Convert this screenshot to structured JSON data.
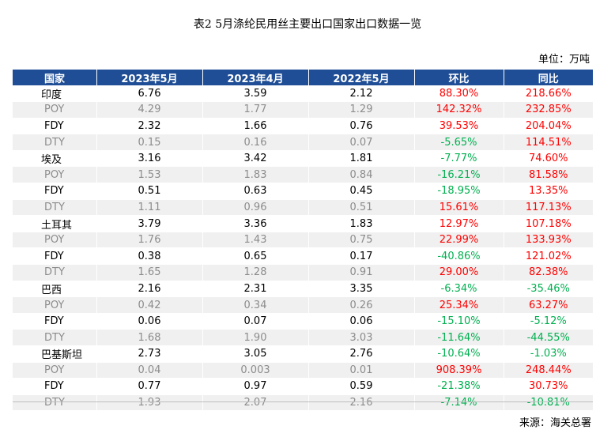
{
  "title": "表2 5月涤纶民用丝主要出口国家出口数据一览",
  "unit": "单位：万吨",
  "source": "来源：海关总署",
  "headers": [
    "国家",
    "2023年5月",
    "2023年4月",
    "2022年5月",
    "环比",
    "同比"
  ],
  "colors": {
    "header_bg": "#1f4e96",
    "up": "#ff0000",
    "down": "#00b050",
    "gray": "#8c8c8c"
  },
  "rows": [
    {
      "name": "印度",
      "may23": "6.76",
      "apr23": "3.59",
      "may22": "2.12",
      "mom": "88.30%",
      "yoy": "218.66%",
      "mom_dir": "up",
      "yoy_dir": "up",
      "kind": "country"
    },
    {
      "name": "POY",
      "may23": "4.29",
      "apr23": "1.77",
      "may22": "1.29",
      "mom": "142.32%",
      "yoy": "232.85%",
      "mom_dir": "up",
      "yoy_dir": "up",
      "kind": "gray"
    },
    {
      "name": "FDY",
      "may23": "2.32",
      "apr23": "1.66",
      "may22": "0.76",
      "mom": "39.53%",
      "yoy": "204.04%",
      "mom_dir": "up",
      "yoy_dir": "up",
      "kind": "sub"
    },
    {
      "name": "DTY",
      "may23": "0.15",
      "apr23": "0.16",
      "may22": "0.07",
      "mom": "-5.65%",
      "yoy": "114.51%",
      "mom_dir": "down",
      "yoy_dir": "up",
      "kind": "gray"
    },
    {
      "name": "埃及",
      "may23": "3.16",
      "apr23": "3.42",
      "may22": "1.81",
      "mom": "-7.77%",
      "yoy": "74.60%",
      "mom_dir": "down",
      "yoy_dir": "up",
      "kind": "country"
    },
    {
      "name": "POY",
      "may23": "1.53",
      "apr23": "1.83",
      "may22": "0.84",
      "mom": "-16.21%",
      "yoy": "81.58%",
      "mom_dir": "down",
      "yoy_dir": "up",
      "kind": "gray"
    },
    {
      "name": "FDY",
      "may23": "0.51",
      "apr23": "0.63",
      "may22": "0.45",
      "mom": "-18.95%",
      "yoy": "13.35%",
      "mom_dir": "down",
      "yoy_dir": "up",
      "kind": "sub"
    },
    {
      "name": "DTY",
      "may23": "1.11",
      "apr23": "0.96",
      "may22": "0.51",
      "mom": "15.61%",
      "yoy": "117.13%",
      "mom_dir": "up",
      "yoy_dir": "up",
      "kind": "gray"
    },
    {
      "name": "土耳其",
      "may23": "3.79",
      "apr23": "3.36",
      "may22": "1.83",
      "mom": "12.97%",
      "yoy": "107.18%",
      "mom_dir": "up",
      "yoy_dir": "up",
      "kind": "country"
    },
    {
      "name": "POY",
      "may23": "1.76",
      "apr23": "1.43",
      "may22": "0.75",
      "mom": "22.99%",
      "yoy": "133.93%",
      "mom_dir": "up",
      "yoy_dir": "up",
      "kind": "gray"
    },
    {
      "name": "FDY",
      "may23": "0.38",
      "apr23": "0.65",
      "may22": "0.17",
      "mom": "-40.86%",
      "yoy": "121.02%",
      "mom_dir": "down",
      "yoy_dir": "up",
      "kind": "sub"
    },
    {
      "name": "DTY",
      "may23": "1.65",
      "apr23": "1.28",
      "may22": "0.91",
      "mom": "29.00%",
      "yoy": "82.38%",
      "mom_dir": "up",
      "yoy_dir": "up",
      "kind": "gray"
    },
    {
      "name": "巴西",
      "may23": "2.16",
      "apr23": "2.31",
      "may22": "3.35",
      "mom": "-6.34%",
      "yoy": "-35.46%",
      "mom_dir": "down",
      "yoy_dir": "down",
      "kind": "country"
    },
    {
      "name": "POY",
      "may23": "0.42",
      "apr23": "0.34",
      "may22": "0.26",
      "mom": "25.34%",
      "yoy": "63.27%",
      "mom_dir": "up",
      "yoy_dir": "up",
      "kind": "gray"
    },
    {
      "name": "FDY",
      "may23": "0.06",
      "apr23": "0.07",
      "may22": "0.06",
      "mom": "-15.10%",
      "yoy": "-5.12%",
      "mom_dir": "down",
      "yoy_dir": "down",
      "kind": "sub"
    },
    {
      "name": "DTY",
      "may23": "1.68",
      "apr23": "1.90",
      "may22": "3.03",
      "mom": "-11.64%",
      "yoy": "-44.55%",
      "mom_dir": "down",
      "yoy_dir": "down",
      "kind": "gray"
    },
    {
      "name": "巴基斯坦",
      "may23": "2.73",
      "apr23": "3.05",
      "may22": "2.76",
      "mom": "-10.64%",
      "yoy": "-1.03%",
      "mom_dir": "down",
      "yoy_dir": "down",
      "kind": "country"
    },
    {
      "name": "POY",
      "may23": "0.04",
      "apr23": "0.003",
      "may22": "0.01",
      "mom": "908.39%",
      "yoy": "248.44%",
      "mom_dir": "up",
      "yoy_dir": "up",
      "kind": "gray"
    },
    {
      "name": "FDY",
      "may23": "0.77",
      "apr23": "0.97",
      "may22": "0.59",
      "mom": "-21.38%",
      "yoy": "30.73%",
      "mom_dir": "down",
      "yoy_dir": "up",
      "kind": "sub"
    },
    {
      "name": "DTY",
      "may23": "1.93",
      "apr23": "2.07",
      "may22": "2.16",
      "mom": "-7.14%",
      "yoy": "-10.81%",
      "mom_dir": "down",
      "yoy_dir": "down",
      "kind": "gray"
    }
  ]
}
